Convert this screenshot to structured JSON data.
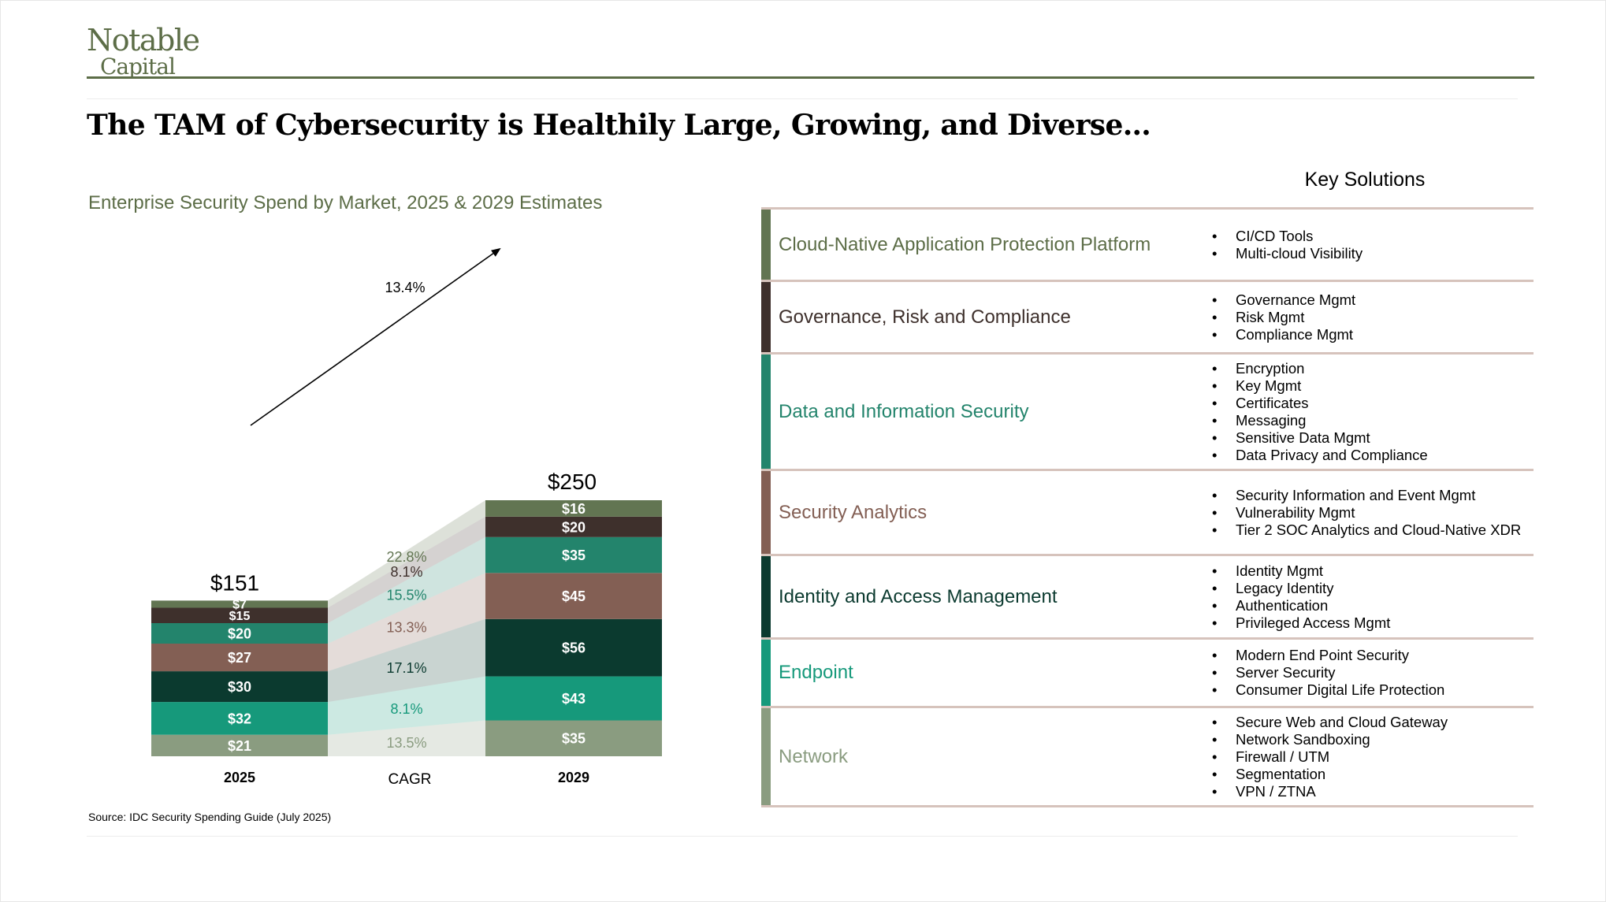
{
  "logo": {
    "line1": "Notable",
    "line2": "Capital"
  },
  "title": "The TAM of Cybersecurity is Healthily Large, Growing, and Diverse…",
  "subtitle": "Enterprise Security Spend by Market, 2025 & 2029 Estimates",
  "source": "Source:  IDC Security Spending Guide (July 2025)",
  "key_solutions_title": "Key Solutions",
  "colors": {
    "network": "#8a9c80",
    "endpoint": "#16997b",
    "iam": "#0b3a2f",
    "security_analytics": "#835f54",
    "data_security": "#23846c",
    "grc": "#3e302c",
    "cnapp": "#627552",
    "brand": "#5c6d47"
  },
  "chart_data": {
    "type": "bar",
    "stacked": true,
    "categories": [
      "2025",
      "2029"
    ],
    "middle_label": "CAGR",
    "totals": [
      {
        "value": 151,
        "label": "$151"
      },
      {
        "value": 250,
        "label": "$250"
      }
    ],
    "overall_cagr": "13.4%",
    "series": [
      {
        "name": "Network",
        "values": [
          21,
          35
        ],
        "labels": [
          "$21",
          "$35"
        ],
        "cagr": "13.5%",
        "color": "#8a9c80",
        "cagr_color": "#8a9c80"
      },
      {
        "name": "Endpoint",
        "values": [
          32,
          43
        ],
        "labels": [
          "$32",
          "$43"
        ],
        "cagr": "8.1%",
        "color": "#16997b",
        "cagr_color": "#16997b"
      },
      {
        "name": "Identity and Access Management",
        "values": [
          30,
          56
        ],
        "labels": [
          "$30",
          "$56"
        ],
        "cagr": "17.1%",
        "color": "#0b3a2f",
        "cagr_color": "#0b3a2f"
      },
      {
        "name": "Security Analytics",
        "values": [
          27,
          45
        ],
        "labels": [
          "$27",
          "$45"
        ],
        "cagr": "13.3%",
        "color": "#835f54",
        "cagr_color": "#835f54"
      },
      {
        "name": "Data and Information Security",
        "values": [
          20,
          35
        ],
        "labels": [
          "$20",
          "$35"
        ],
        "cagr": "15.5%",
        "color": "#23846c",
        "cagr_color": "#23846c"
      },
      {
        "name": "Governance, Risk and Compliance",
        "values": [
          15,
          20
        ],
        "labels": [
          "$15",
          "$20"
        ],
        "cagr": "8.1%",
        "color": "#3e302c",
        "cagr_color": "#3e302c"
      },
      {
        "name": "Cloud-Native Application Protection Platform",
        "values": [
          7,
          16
        ],
        "labels": [
          "$7",
          "$16"
        ],
        "cagr": "22.8%",
        "color": "#627552",
        "cagr_color": "#627552"
      }
    ]
  },
  "segments": [
    {
      "name": "Cloud-Native Application Protection Platform",
      "color": "#627552",
      "text_color": "#5c6d47",
      "solutions": [
        "CI/CD Tools",
        "Multi-cloud Visibility"
      ]
    },
    {
      "name": "Governance, Risk and Compliance",
      "color": "#3e302c",
      "text_color": "#3e302c",
      "solutions": [
        "Governance Mgmt",
        "Risk Mgmt",
        "Compliance Mgmt"
      ]
    },
    {
      "name": "Data and Information Security",
      "color": "#23846c",
      "text_color": "#23846c",
      "solutions": [
        "Encryption",
        "Key Mgmt",
        "Certificates",
        "Messaging",
        "Sensitive Data Mgmt",
        "Data Privacy and Compliance"
      ]
    },
    {
      "name": "Security Analytics",
      "color": "#835f54",
      "text_color": "#835f54",
      "solutions": [
        "Security Information and Event Mgmt",
        "Vulnerability Mgmt",
        "Tier 2 SOC Analytics and Cloud-Native XDR"
      ]
    },
    {
      "name": "Identity and Access Management",
      "color": "#0b3a2f",
      "text_color": "#0b3a2f",
      "solutions": [
        "Identity Mgmt",
        "Legacy Identity",
        "Authentication",
        "Privileged Access Mgmt"
      ]
    },
    {
      "name": "Endpoint",
      "color": "#16997b",
      "text_color": "#16997b",
      "solutions": [
        "Modern End Point Security",
        "Server Security",
        "Consumer Digital Life Protection"
      ]
    },
    {
      "name": "Network",
      "color": "#8a9c80",
      "text_color": "#8a9c80",
      "solutions": [
        "Secure Web and Cloud Gateway",
        "Network Sandboxing",
        "Firewall / UTM",
        "Segmentation",
        "VPN / ZTNA"
      ]
    }
  ]
}
